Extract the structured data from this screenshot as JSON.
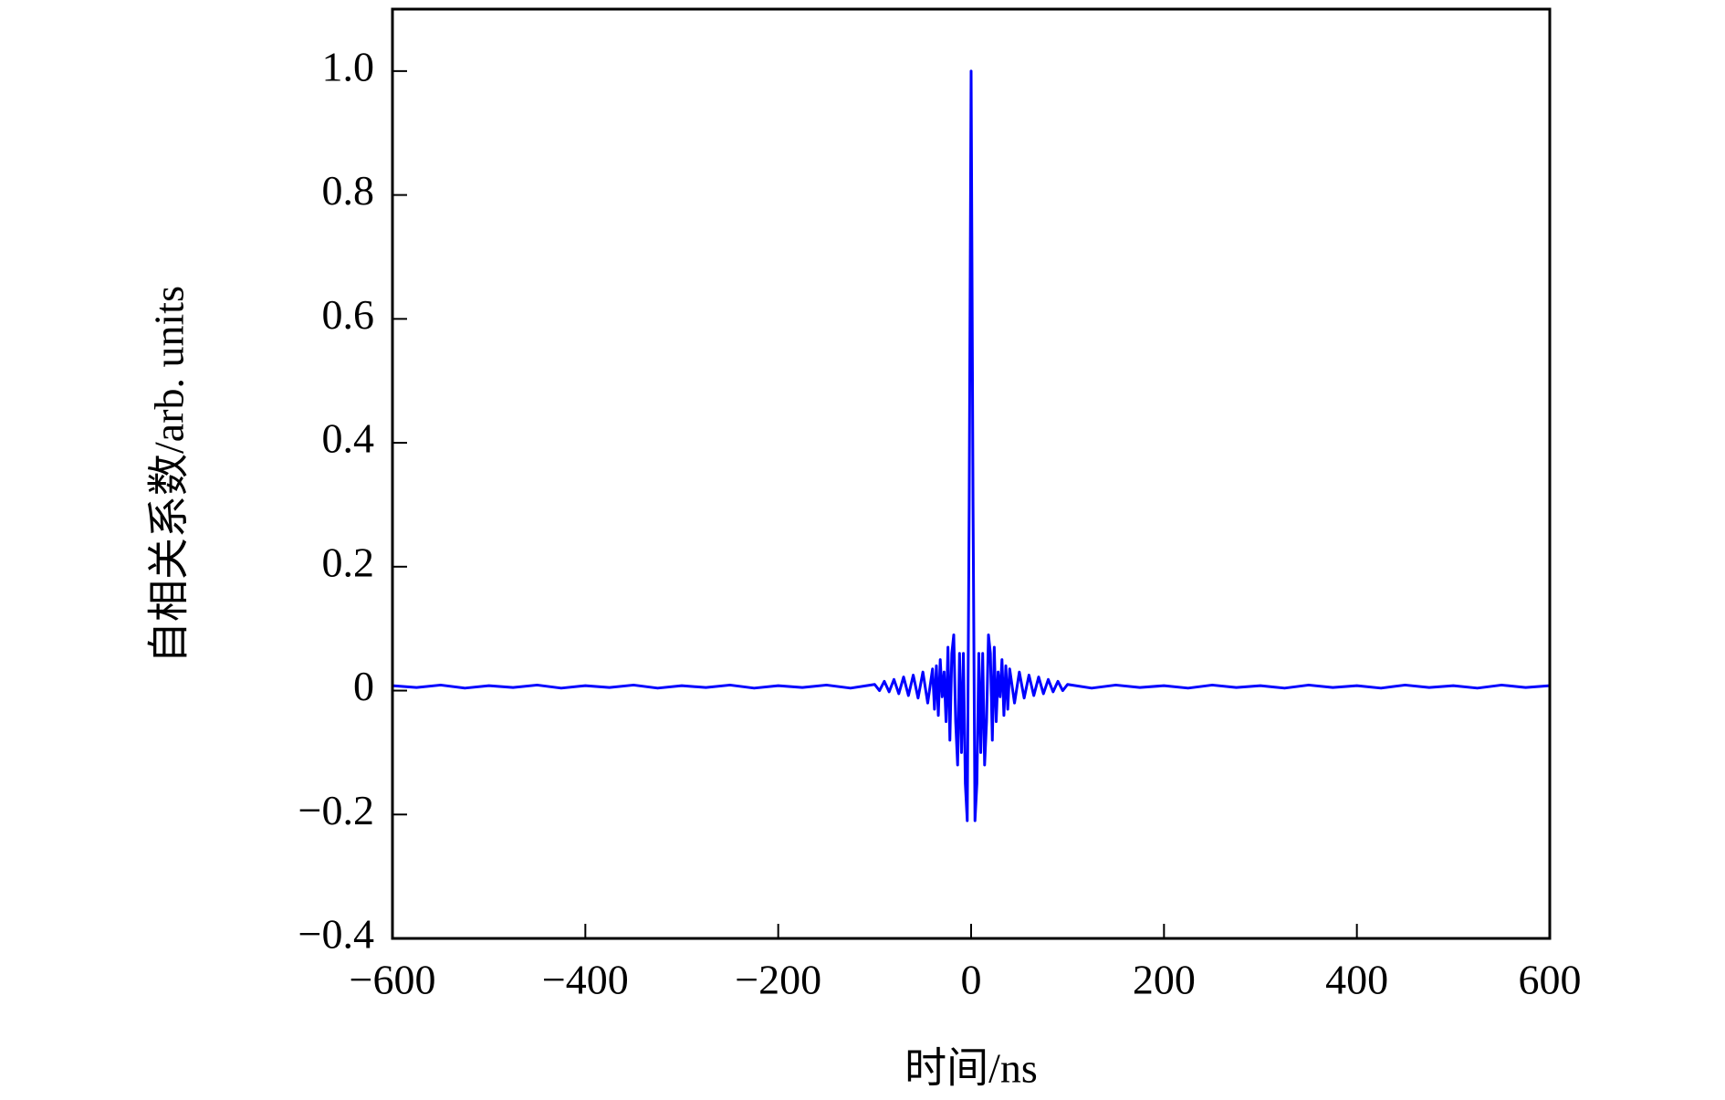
{
  "chart_data": {
    "type": "line",
    "xlabel": "时间/ns",
    "ylabel": "自相关系数/arb. units",
    "xlim": [
      -600,
      600
    ],
    "ylim": [
      -0.4,
      1.1
    ],
    "xticks": [
      {
        "value": -600,
        "label": "−600"
      },
      {
        "value": -400,
        "label": "−400"
      },
      {
        "value": -200,
        "label": "−200"
      },
      0,
      200,
      400,
      600
    ],
    "yticks": [
      {
        "value": -0.4,
        "label": "−0.4"
      },
      {
        "value": -0.2,
        "label": "−0.2"
      },
      0,
      0.2,
      0.4,
      0.6,
      0.8,
      {
        "value": 1.0,
        "label": "1.0"
      }
    ],
    "x": [
      -600,
      -575,
      -550,
      -525,
      -500,
      -475,
      -450,
      -425,
      -400,
      -375,
      -350,
      -325,
      -300,
      -275,
      -250,
      -225,
      -200,
      -175,
      -150,
      -125,
      -100,
      -95,
      -90,
      -85,
      -80,
      -75,
      -70,
      -65,
      -60,
      -55,
      -50,
      -45,
      -40,
      -38,
      -36,
      -34,
      -32,
      -30,
      -28,
      -26,
      -24,
      -22,
      -20,
      -18,
      -16,
      -14,
      -12,
      -10,
      -8,
      -6,
      -4,
      -2,
      0,
      2,
      4,
      6,
      8,
      10,
      12,
      14,
      16,
      18,
      20,
      22,
      24,
      26,
      28,
      30,
      32,
      34,
      36,
      38,
      40,
      45,
      50,
      55,
      60,
      65,
      70,
      75,
      80,
      85,
      90,
      95,
      100,
      125,
      150,
      175,
      200,
      225,
      250,
      275,
      300,
      325,
      350,
      375,
      400,
      425,
      450,
      475,
      500,
      525,
      550,
      575,
      600
    ],
    "series": [
      {
        "name": "autocorrelation",
        "color": "#0000ff",
        "values": [
          0.008,
          0.005,
          0.009,
          0.004,
          0.008,
          0.005,
          0.009,
          0.004,
          0.008,
          0.005,
          0.009,
          0.004,
          0.008,
          0.005,
          0.009,
          0.004,
          0.008,
          0.005,
          0.009,
          0.004,
          0.01,
          0.0,
          0.015,
          -0.002,
          0.018,
          -0.005,
          0.022,
          -0.008,
          0.025,
          -0.012,
          0.03,
          -0.02,
          0.035,
          -0.03,
          0.04,
          -0.04,
          0.05,
          -0.01,
          0.03,
          -0.05,
          0.07,
          -0.08,
          0.06,
          0.09,
          -0.05,
          -0.12,
          0.06,
          -0.1,
          0.06,
          -0.15,
          -0.21,
          0.3,
          1.0,
          0.3,
          -0.21,
          -0.15,
          0.06,
          -0.1,
          0.06,
          -0.12,
          -0.05,
          0.09,
          0.06,
          -0.08,
          0.07,
          -0.05,
          0.03,
          -0.01,
          0.05,
          -0.04,
          0.04,
          -0.03,
          0.035,
          -0.02,
          0.03,
          -0.012,
          0.025,
          -0.008,
          0.022,
          -0.005,
          0.018,
          -0.002,
          0.015,
          0.0,
          0.01,
          0.004,
          0.009,
          0.005,
          0.008,
          0.004,
          0.009,
          0.005,
          0.008,
          0.004,
          0.009,
          0.005,
          0.008,
          0.004,
          0.009,
          0.005,
          0.008,
          0.004,
          0.009,
          0.005,
          0.008
        ]
      }
    ]
  }
}
